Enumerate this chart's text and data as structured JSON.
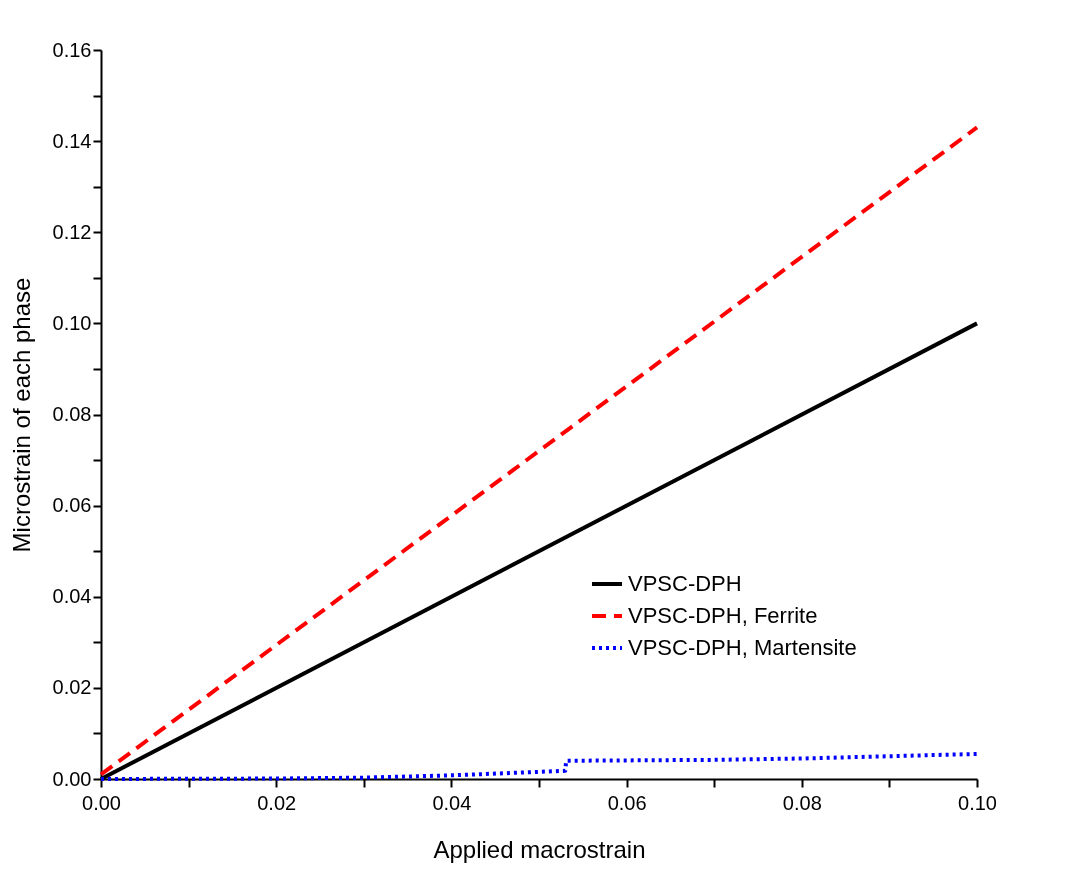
{
  "chart_data": {
    "type": "line",
    "xlabel": "Applied macrostrain",
    "ylabel": "Microstrain of each phase",
    "xlim": [
      0,
      0.1
    ],
    "ylim": [
      0,
      0.16
    ],
    "xticks": [
      {
        "value": 0,
        "label": "0.00"
      },
      {
        "value": 0.01,
        "label": null
      },
      {
        "value": 0.02,
        "label": "0.02"
      },
      {
        "value": 0.03,
        "label": null
      },
      {
        "value": 0.04,
        "label": "0.04"
      },
      {
        "value": 0.05,
        "label": null
      },
      {
        "value": 0.06,
        "label": "0.06"
      },
      {
        "value": 0.07,
        "label": null
      },
      {
        "value": 0.08,
        "label": "0.08"
      },
      {
        "value": 0.09,
        "label": null
      },
      {
        "value": 0.1,
        "label": "0.10"
      }
    ],
    "yticks": [
      {
        "value": 0,
        "label": "0.00"
      },
      {
        "value": 0.01,
        "label": null
      },
      {
        "value": 0.02,
        "label": "0.02"
      },
      {
        "value": 0.03,
        "label": null
      },
      {
        "value": 0.04,
        "label": "0.04"
      },
      {
        "value": 0.05,
        "label": null
      },
      {
        "value": 0.06,
        "label": "0.06"
      },
      {
        "value": 0.07,
        "label": null
      },
      {
        "value": 0.08,
        "label": "0.08"
      },
      {
        "value": 0.09,
        "label": null
      },
      {
        "value": 0.1,
        "label": "0.10"
      },
      {
        "value": 0.11,
        "label": null
      },
      {
        "value": 0.12,
        "label": "0.12"
      },
      {
        "value": 0.13,
        "label": null
      },
      {
        "value": 0.14,
        "label": "0.14"
      },
      {
        "value": 0.15,
        "label": null
      },
      {
        "value": 0.16,
        "label": "0.16"
      }
    ],
    "grid": false,
    "legend": "bottom right",
    "series": [
      {
        "name": "VPSC-DPH",
        "color": "#000000",
        "line_style": "solid",
        "x": [
          0,
          0.1
        ],
        "values": [
          0,
          0.1
        ]
      },
      {
        "name": "VPSC-DPH, Ferrite",
        "color": "#ff0000",
        "line_style": "dashed",
        "x": [
          0,
          0.1
        ],
        "values": [
          0.001,
          0.143
        ]
      },
      {
        "name": "VPSC-DPH, Martensite",
        "color": "#0000ff",
        "line_style": "dotted",
        "x": [
          0,
          0.02,
          0.03,
          0.04,
          0.053,
          0.0531,
          0.07,
          0.08,
          0.1
        ],
        "values": [
          0,
          0.0001,
          0.0003,
          0.0008,
          0.0018,
          0.004,
          0.0042,
          0.0045,
          0.0055
        ]
      }
    ]
  }
}
